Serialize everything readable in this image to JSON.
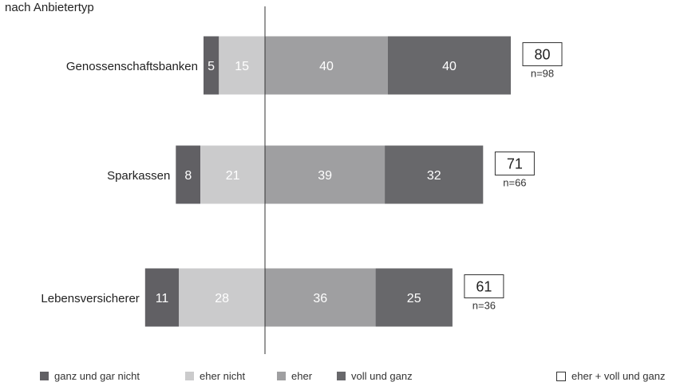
{
  "header": {
    "subtitle": "nach Anbietertyp"
  },
  "chart_data": {
    "type": "bar",
    "orientation": "horizontal",
    "stacked": true,
    "diverging": true,
    "title": "",
    "subtitle": "nach Anbietertyp",
    "categories": [
      "Genossenschaftsbanken",
      "Sparkassen",
      "Lebensversicherer"
    ],
    "series": [
      {
        "name": "ganz und gar nicht",
        "color": "#616064",
        "values": [
          5,
          8,
          11
        ]
      },
      {
        "name": "eher nicht",
        "color": "#cbcbcc",
        "values": [
          15,
          21,
          28
        ]
      },
      {
        "name": "eher",
        "color": "#9f9fa1",
        "values": [
          40,
          39,
          36
        ]
      },
      {
        "name": "voll und ganz",
        "color": "#68686b",
        "values": [
          40,
          32,
          25
        ]
      }
    ],
    "summary": {
      "name": "eher + voll und ganz",
      "values": [
        80,
        71,
        61
      ],
      "n_labels": [
        "n=98",
        "n=66",
        "n=36"
      ]
    },
    "legend_position": "bottom",
    "grid": false
  }
}
